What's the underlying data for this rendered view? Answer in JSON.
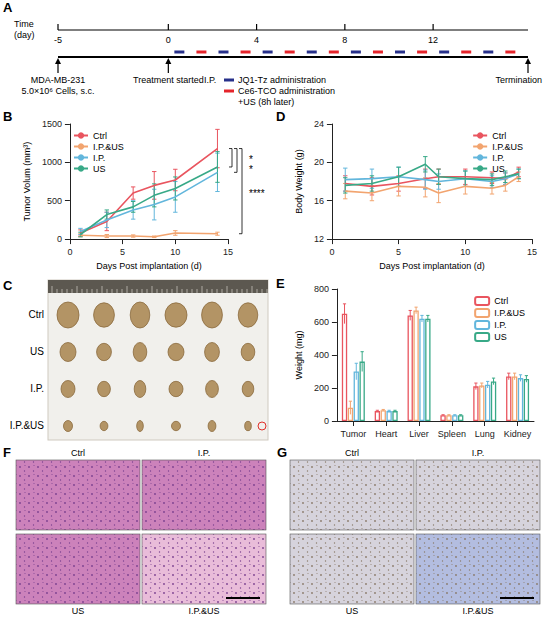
{
  "timeline": {
    "panel": "A",
    "axis_title": [
      "Time",
      "(day)"
    ],
    "range": [
      -5,
      16.3
    ],
    "ticks": [
      -5,
      0,
      4,
      8,
      12
    ],
    "events": [
      {
        "day": -5,
        "lines": [
          "MDA-MB-231",
          "5.0×10⁶ Cells, s.c."
        ]
      },
      {
        "day": 0,
        "lines": [
          "Treatment started"
        ]
      },
      {
        "day": 16.3,
        "lines": [
          "Termination"
        ]
      }
    ],
    "route": "I.P.",
    "doses": [
      {
        "name": "JQ1-Tz administration",
        "color": "#27308a",
        "days": [
          0.5,
          2.5,
          4.5,
          6.5,
          8.5,
          10.5,
          12.5,
          14.5
        ]
      },
      {
        "name": "Ce6-TCO administration",
        "note": "+US (8h later)",
        "color": "#e5242b",
        "days": [
          1.5,
          3.5,
          5.5,
          7.5,
          9.5,
          11.5,
          13.5,
          15.5
        ]
      }
    ]
  },
  "chart_data": [
    {
      "panel": "B",
      "type": "line",
      "x_label": "Days Post implantation (d)",
      "y_label": "Tumor Volum (mm³)",
      "xlim": [
        0,
        15
      ],
      "xticks": [
        0,
        5,
        10,
        15
      ],
      "ylim": [
        0,
        1500
      ],
      "yticks": [
        0,
        500,
        1000,
        1500
      ],
      "grid": false,
      "legend": "upper left",
      "x": [
        1,
        3.5,
        6,
        8,
        10,
        14
      ],
      "series": [
        {
          "name": "Ctrl",
          "color": "#e9555f",
          "values": [
            80,
            230,
            600,
            700,
            770,
            1180
          ],
          "errors": [
            40,
            120,
            80,
            180,
            140,
            250
          ]
        },
        {
          "name": "I.P.&US",
          "color": "#f2a46f",
          "values": [
            50,
            40,
            40,
            30,
            80,
            70
          ],
          "errors": [
            20,
            20,
            15,
            10,
            30,
            20
          ]
        },
        {
          "name": "I.P.",
          "color": "#62b6dc",
          "values": [
            100,
            250,
            380,
            450,
            550,
            870
          ],
          "errors": [
            40,
            100,
            120,
            200,
            200,
            250
          ]
        },
        {
          "name": "US",
          "color": "#38a987",
          "values": [
            60,
            320,
            420,
            570,
            660,
            940
          ],
          "errors": [
            30,
            60,
            70,
            150,
            150,
            200
          ]
        }
      ],
      "annotations": [
        {
          "label": "****",
          "between": [
            "Ctrl",
            "I.P.&US"
          ]
        },
        {
          "label": "*",
          "between": [
            "Ctrl",
            "I.P."
          ]
        },
        {
          "label": "*",
          "between": [
            "Ctrl",
            "US"
          ]
        }
      ]
    },
    {
      "panel": "D",
      "type": "line",
      "x_label": "Days Post implantation (d)",
      "y_label": "Body Weight (g)",
      "xlim": [
        0,
        15
      ],
      "xticks": [
        0,
        5,
        10,
        15
      ],
      "ylim": [
        12,
        24
      ],
      "yticks": [
        12,
        16,
        20,
        24
      ],
      "grid": false,
      "legend": "upper right",
      "x": [
        1,
        3,
        5,
        7,
        8,
        10,
        12,
        13,
        14
      ],
      "series": [
        {
          "name": "Ctrl",
          "color": "#e9555f",
          "values": [
            17.8,
            17.5,
            17.8,
            18.3,
            18.5,
            18.5,
            18.4,
            18.3,
            19.0
          ],
          "errors": [
            0.8,
            0.9,
            0.8,
            1.0,
            0.8,
            0.8,
            0.6,
            0.6,
            0.5
          ]
        },
        {
          "name": "I.P.&US",
          "color": "#f2a46f",
          "values": [
            17.0,
            16.8,
            17.5,
            17.4,
            16.8,
            17.5,
            17.3,
            17.6,
            18.5
          ],
          "errors": [
            0.8,
            0.8,
            1.0,
            1.0,
            1.0,
            0.8,
            0.6,
            0.6,
            0.5
          ]
        },
        {
          "name": "I.P.",
          "color": "#62b6dc",
          "values": [
            18.2,
            18.3,
            18.5,
            18.2,
            18.0,
            18.3,
            18.0,
            18.3,
            18.8
          ],
          "errors": [
            1.2,
            1.0,
            1.0,
            1.0,
            0.8,
            0.8,
            0.6,
            0.6,
            0.5
          ]
        },
        {
          "name": "US",
          "color": "#38a987",
          "values": [
            17.6,
            17.8,
            18.5,
            19.8,
            18.5,
            18.3,
            18.2,
            18.5,
            18.8
          ],
          "errors": [
            0.8,
            0.8,
            1.0,
            0.8,
            0.8,
            0.8,
            0.6,
            0.6,
            0.5
          ]
        }
      ]
    },
    {
      "panel": "E",
      "type": "bar",
      "y_label": "Weight (mg)",
      "categories": [
        "Tumor",
        "Heart",
        "Liver",
        "Spleen",
        "Lung",
        "Kidney"
      ],
      "ylim": [
        0,
        800
      ],
      "yticks": [
        0,
        200,
        400,
        600,
        800
      ],
      "grid": false,
      "legend": "upper right",
      "series": [
        {
          "name": "Ctrl",
          "color": "#e9555f",
          "values": [
            650,
            60,
            640,
            35,
            210,
            270
          ],
          "errors": [
            60,
            5,
            30,
            3,
            20,
            20
          ]
        },
        {
          "name": "I.P.&US",
          "color": "#f2a46f",
          "values": [
            80,
            65,
            670,
            35,
            215,
            270
          ],
          "errors": [
            40,
            5,
            20,
            3,
            15,
            20
          ]
        },
        {
          "name": "I.P.",
          "color": "#62b6dc",
          "values": [
            300,
            60,
            620,
            35,
            220,
            260
          ],
          "errors": [
            50,
            5,
            20,
            3,
            20,
            20
          ]
        },
        {
          "name": "US",
          "color": "#38a987",
          "values": [
            360,
            60,
            620,
            35,
            240,
            255
          ],
          "errors": [
            60,
            5,
            20,
            3,
            20,
            20
          ]
        }
      ]
    }
  ],
  "photo_panels": [
    {
      "panel": "C",
      "rows": [
        "Ctrl",
        "US",
        "I.P.",
        "I.P.&US"
      ]
    },
    {
      "panel": "F",
      "tiles": [
        "Ctrl",
        "I.P.",
        "US",
        "I.P.&US"
      ]
    },
    {
      "panel": "G",
      "tiles": [
        "Ctrl",
        "I.P.",
        "US",
        "I.P.&US"
      ]
    }
  ]
}
